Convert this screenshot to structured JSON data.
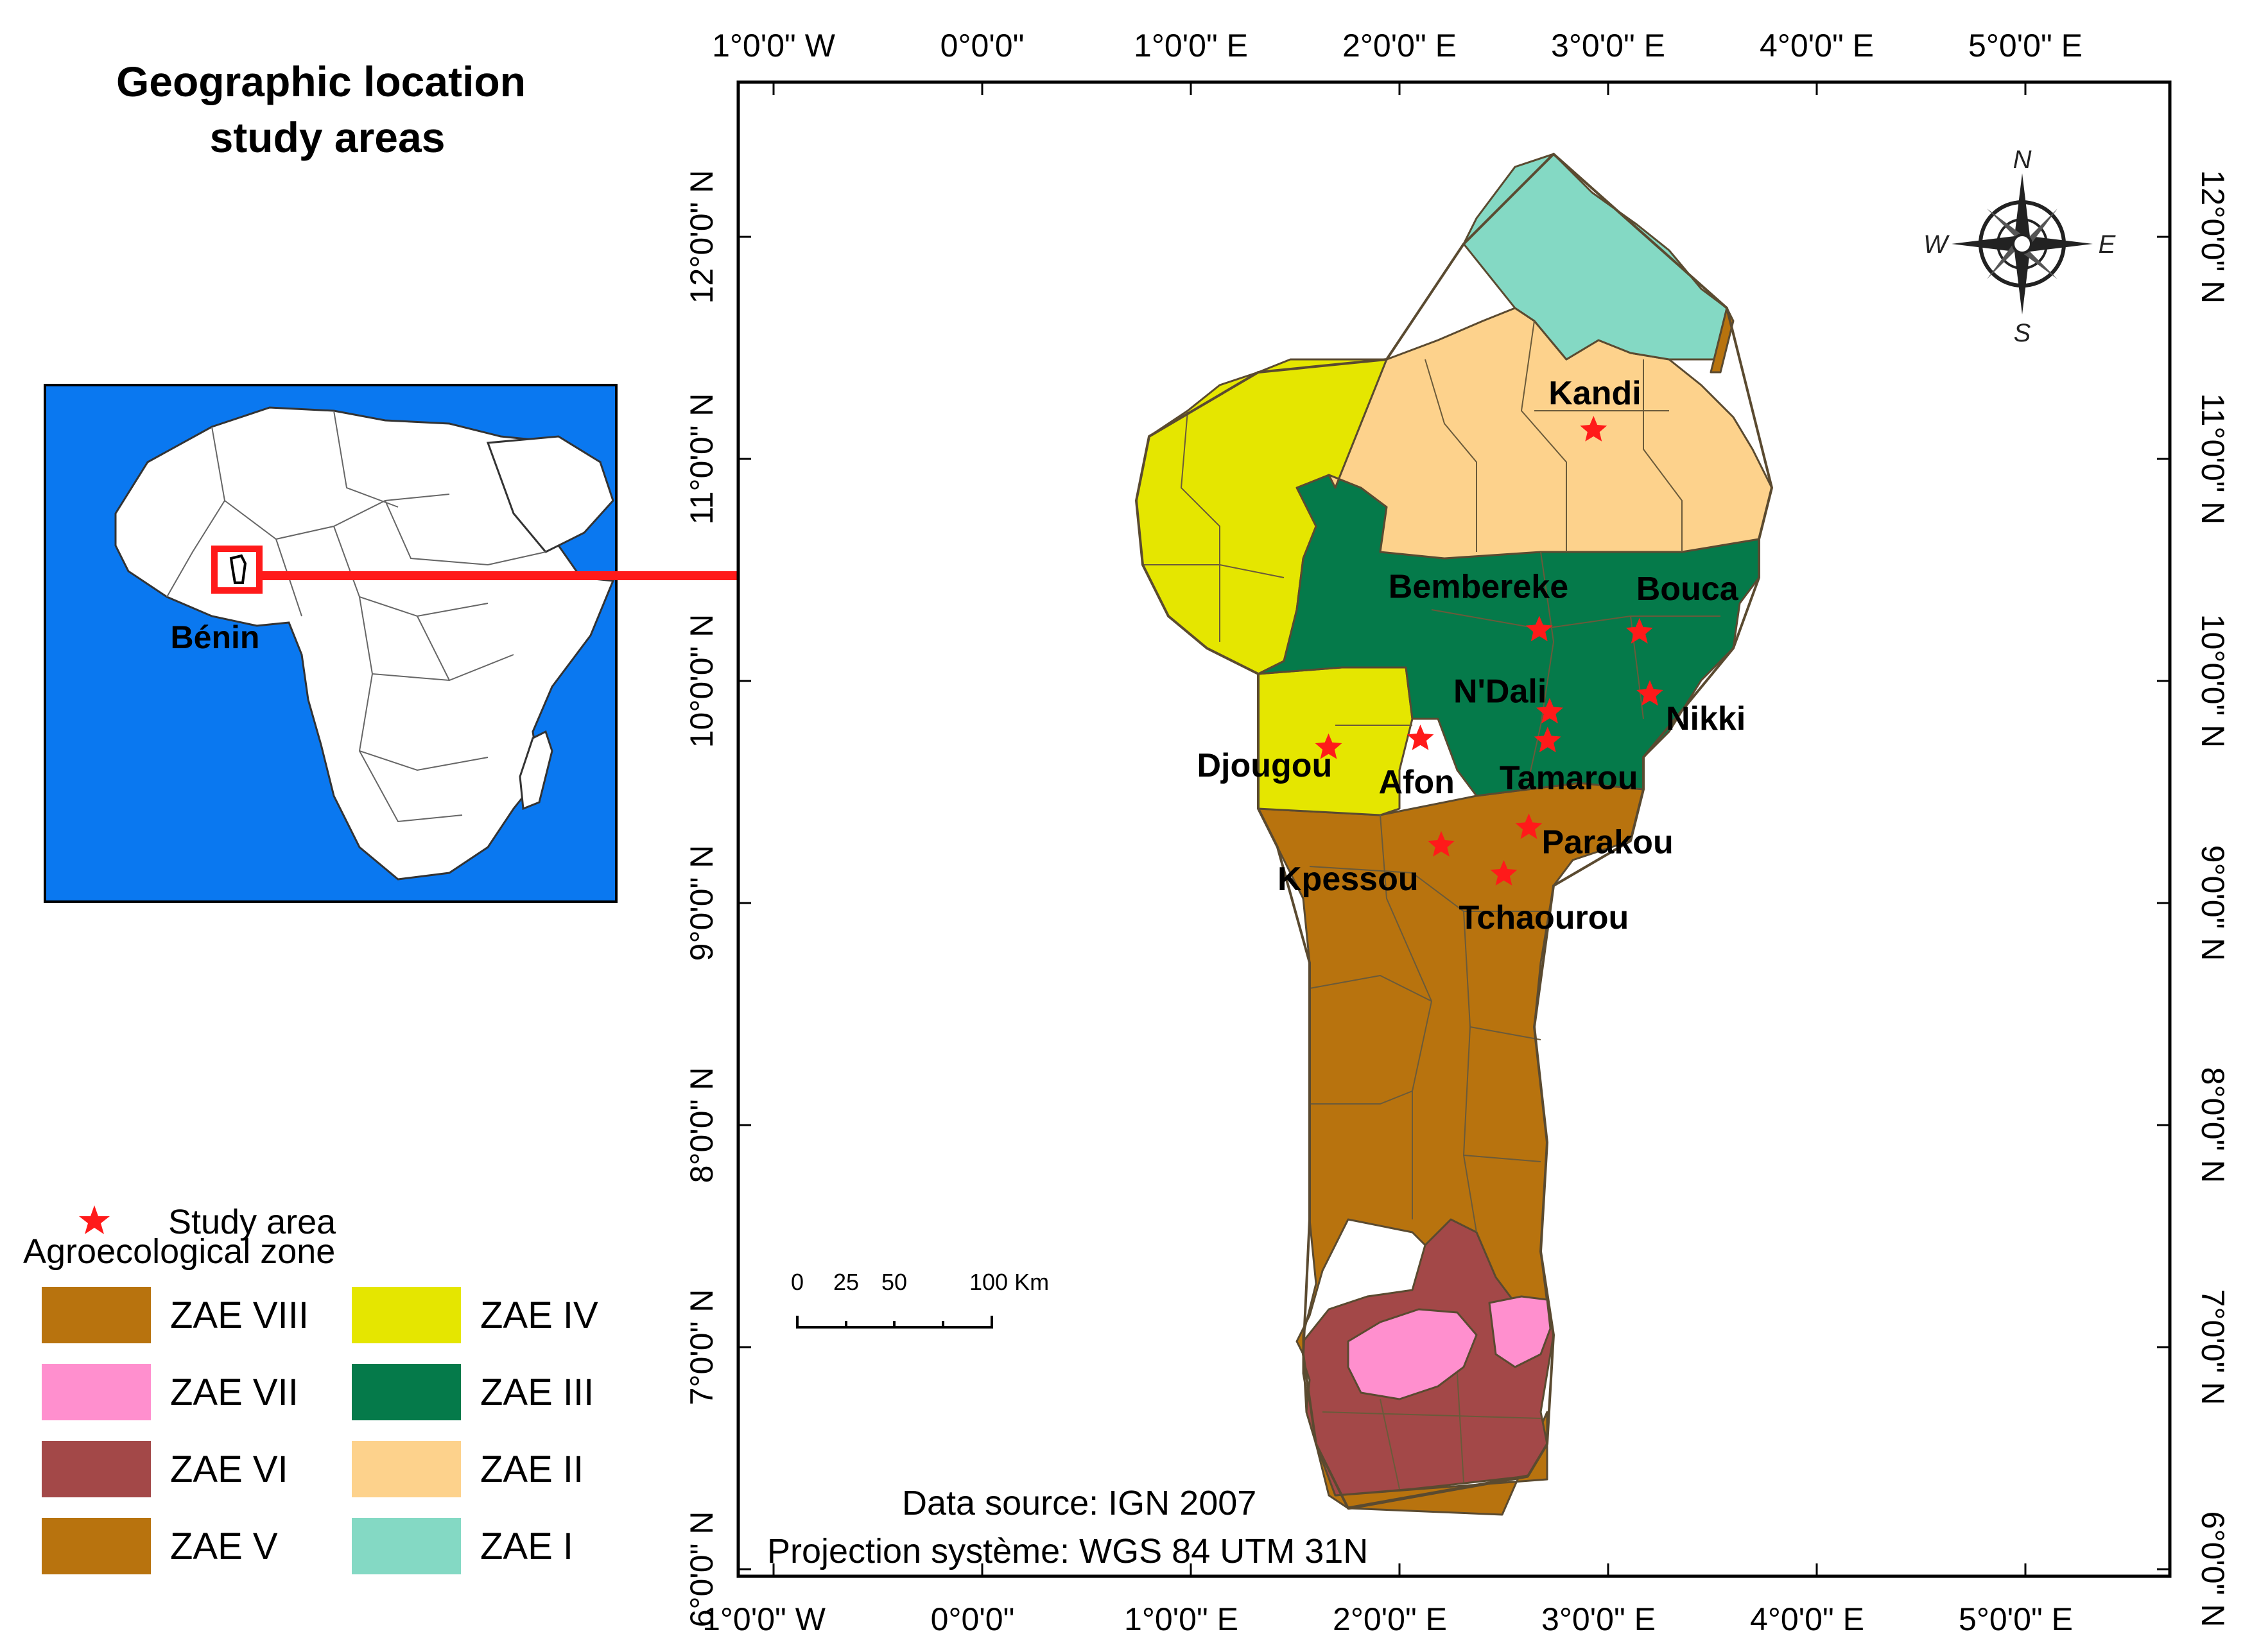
{
  "title": [
    "Geographic location",
    "study areas"
  ],
  "inset": {
    "country_label": "Bénin",
    "colors": {
      "ocean": "#0a78f0",
      "land": "#ffffff",
      "highlight": "#ff1a1a"
    }
  },
  "grid": {
    "longitudes_top": [
      "1°0'0\" W",
      "0°0'0\"",
      "1°0'0\" E",
      "2°0'0\" E",
      "3°0'0\" E",
      "4°0'0\" E",
      "5°0'0\" E"
    ],
    "longitudes_bottom": [
      "1°0'0\" W",
      "0°0'0\"",
      "1°0'0\" E",
      "2°0'0\" E",
      "3°0'0\" E",
      "4°0'0\" E",
      "5°0'0\" E"
    ],
    "latitudes": [
      "12°0'0\" N",
      "11°0'0\" N",
      "10°0'0\" N",
      "9°0'0\" N",
      "8°0'0\" N",
      "7°0'0\" N",
      "6°0'0\" N"
    ]
  },
  "places": [
    {
      "name": "Kandi",
      "lon": 2.93,
      "lat": 11.13
    },
    {
      "name": "Bembereke",
      "lon": 2.67,
      "lat": 10.23
    },
    {
      "name": "Bouca",
      "lon": 3.15,
      "lat": 10.22
    },
    {
      "name": "Nikki",
      "lon": 3.2,
      "lat": 9.94
    },
    {
      "name": "N'Dali",
      "lon": 2.72,
      "lat": 9.86
    },
    {
      "name": "Tamarou",
      "lon": 2.71,
      "lat": 9.73
    },
    {
      "name": "Afon",
      "lon": 2.1,
      "lat": 9.74
    },
    {
      "name": "Djougou",
      "lon": 1.66,
      "lat": 9.7
    },
    {
      "name": "Kpessou",
      "lon": 2.2,
      "lat": 9.26
    },
    {
      "name": "Parakou",
      "lon": 2.62,
      "lat": 9.34
    },
    {
      "name": "Tchaourou",
      "lon": 2.5,
      "lat": 9.13
    }
  ],
  "legend": {
    "study_area_label": "Study area",
    "zone_heading": "Agroecological zone",
    "zones": [
      {
        "label": "ZAE VIII",
        "color": "#b8730e"
      },
      {
        "label": "ZAE IV",
        "color": "#e5e600"
      },
      {
        "label": "ZAE VII",
        "color": "#ff8fce"
      },
      {
        "label": "ZAE III",
        "color": "#057a4a"
      },
      {
        "label": "ZAE VI",
        "color": "#a34848"
      },
      {
        "label": "ZAE II",
        "color": "#fdd28c"
      },
      {
        "label": "ZAE V",
        "color": "#b8730e"
      },
      {
        "label": "ZAE I",
        "color": "#84d9c4"
      }
    ]
  },
  "scale_bar": {
    "ticks": [
      "0",
      "25",
      "50",
      "100 Km"
    ]
  },
  "north_arrow": {
    "n": "N",
    "s": "S",
    "e": "E",
    "w": "W"
  },
  "credits": [
    "Data source: IGN 2007",
    "Projection système: WGS 84 UTM 31N"
  ],
  "colors": {
    "star": "#ff1a1a",
    "frame": "#000000",
    "label": "#000000"
  }
}
